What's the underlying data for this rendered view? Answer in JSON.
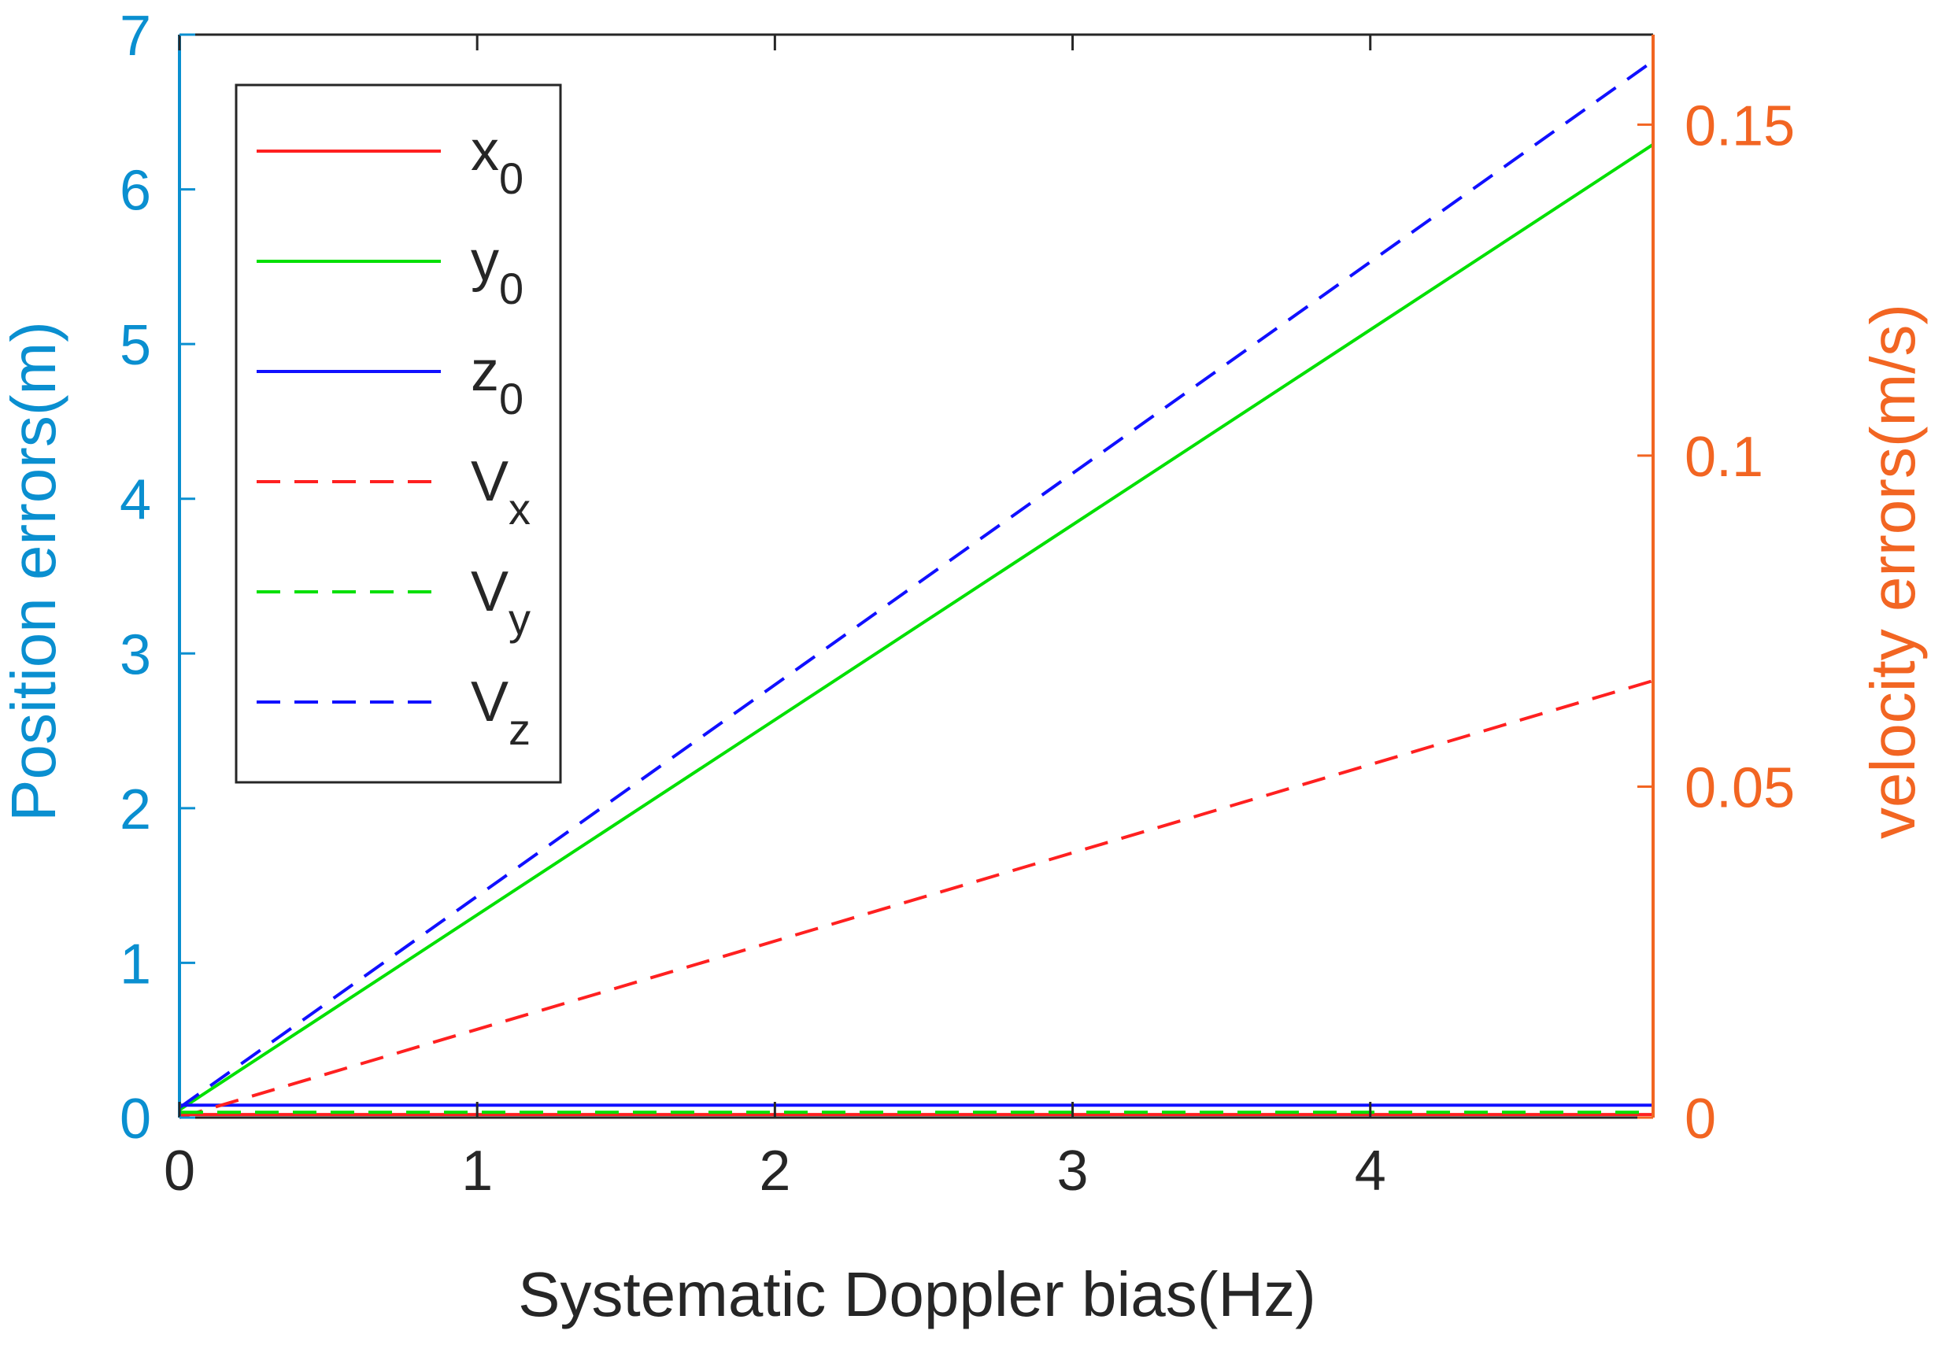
{
  "chart_data": {
    "type": "line",
    "xlabel": "Systematic Doppler bias(Hz)",
    "ylabel_left": "Position errors(m)",
    "ylabel_right": "velocity errors(m/s)",
    "xlim": [
      0,
      4.95
    ],
    "ylim_left": [
      0,
      7
    ],
    "ylim_right": [
      0,
      0.1636
    ],
    "xticks": [
      0,
      1,
      2,
      3,
      4
    ],
    "xtick_labels": [
      "0",
      "1",
      "2",
      "3",
      "4"
    ],
    "yticks_left": [
      0,
      1,
      2,
      3,
      4,
      5,
      6,
      7
    ],
    "ytick_labels_left": [
      "0",
      "1",
      "2",
      "3",
      "4",
      "5",
      "6",
      "7"
    ],
    "yticks_right": [
      0,
      0.05,
      0.1,
      0.15
    ],
    "ytick_labels_right": [
      "0",
      "0.05",
      "0.1",
      "0.15"
    ],
    "grid": false,
    "legend_position": "top-left",
    "colors": {
      "left_axis": "#0a8fd0",
      "right_axis": "#f26522",
      "axis_black": "#262626",
      "x0": "#ff2020",
      "y0": "#00e000",
      "z0": "#1010ff",
      "Vx": "#ff2020",
      "Vy": "#00e000",
      "Vz": "#1010ff"
    },
    "series": [
      {
        "name": "x",
        "sub": "0",
        "axis": "left",
        "style": "solid",
        "color_key": "x0",
        "x": [
          0,
          4.95
        ],
        "y": [
          0.02,
          0.02
        ]
      },
      {
        "name": "y",
        "sub": "0",
        "axis": "left",
        "style": "solid",
        "color_key": "y0",
        "x": [
          0,
          4.95
        ],
        "y": [
          0.05,
          6.29
        ]
      },
      {
        "name": "z",
        "sub": "0",
        "axis": "left",
        "style": "solid",
        "color_key": "z0",
        "x": [
          0,
          4.95
        ],
        "y": [
          0.08,
          0.08
        ]
      },
      {
        "name": "V",
        "sub": "x",
        "axis": "right",
        "style": "dashed",
        "color_key": "Vx",
        "x": [
          0,
          4.95
        ],
        "y": [
          0.0,
          0.066
        ]
      },
      {
        "name": "V",
        "sub": "y",
        "axis": "right",
        "style": "dashed",
        "color_key": "Vy",
        "x": [
          0,
          4.95
        ],
        "y": [
          0.0008,
          0.0008
        ]
      },
      {
        "name": "V",
        "sub": "z",
        "axis": "right",
        "style": "dashed",
        "color_key": "Vz",
        "x": [
          0,
          4.95
        ],
        "y": [
          0.0015,
          0.1596
        ]
      }
    ]
  }
}
